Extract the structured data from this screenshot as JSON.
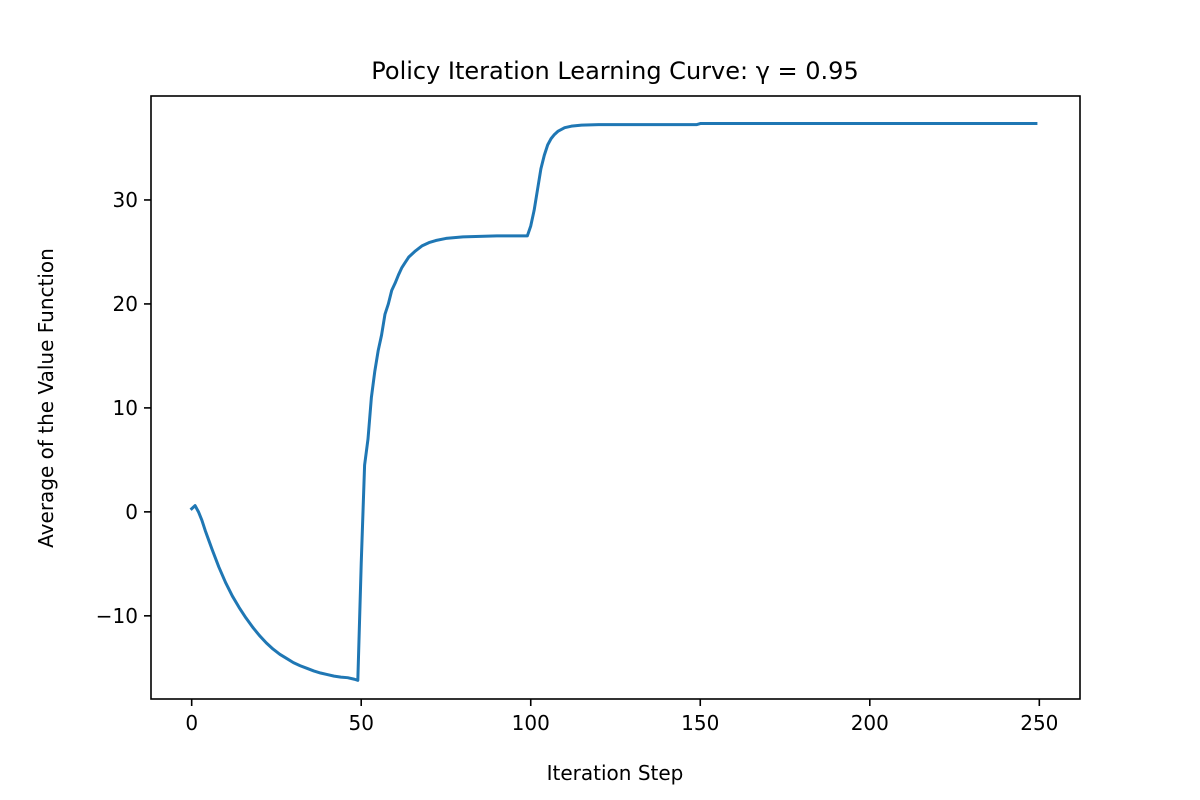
{
  "chart_data": {
    "type": "line",
    "title": "Policy Iteration Learning Curve: γ = 0.95",
    "xlabel": "Iteration Step",
    "ylabel": "Average of the Value Function",
    "xlim": [
      -12,
      262
    ],
    "ylim": [
      -18,
      40
    ],
    "xticks": [
      0,
      50,
      100,
      150,
      200,
      250
    ],
    "yticks": [
      -10,
      0,
      10,
      20,
      30
    ],
    "ytick_labels": [
      "−10",
      "0",
      "10",
      "20",
      "30"
    ],
    "grid": false,
    "legend": "none",
    "series": [
      {
        "color": "#1f77b4",
        "x": [
          0,
          1,
          2,
          3,
          4,
          5,
          6,
          8,
          10,
          12,
          14,
          16,
          18,
          20,
          22,
          24,
          26,
          28,
          30,
          32,
          34,
          36,
          38,
          40,
          42,
          44,
          46,
          48,
          49,
          50,
          51,
          52,
          53,
          54,
          55,
          56,
          57,
          58,
          59,
          60,
          61,
          62,
          63,
          64,
          66,
          68,
          70,
          72,
          75,
          80,
          85,
          90,
          95,
          99,
          100,
          101,
          102,
          103,
          104,
          105,
          106,
          107,
          108,
          110,
          112,
          115,
          120,
          125,
          130,
          140,
          149,
          150,
          175,
          200,
          225,
          249
        ],
        "y": [
          0.3,
          0.6,
          0.0,
          -0.8,
          -1.8,
          -2.7,
          -3.6,
          -5.3,
          -6.8,
          -8.1,
          -9.2,
          -10.2,
          -11.1,
          -11.9,
          -12.6,
          -13.2,
          -13.7,
          -14.1,
          -14.5,
          -14.8,
          -15.05,
          -15.3,
          -15.5,
          -15.65,
          -15.8,
          -15.9,
          -15.95,
          -16.1,
          -16.2,
          -5.0,
          4.5,
          7.0,
          11.0,
          13.5,
          15.5,
          17.0,
          19.0,
          20.0,
          21.3,
          22.0,
          22.8,
          23.5,
          24.0,
          24.5,
          25.1,
          25.6,
          25.9,
          26.1,
          26.3,
          26.45,
          26.5,
          26.55,
          26.55,
          26.55,
          27.5,
          29.0,
          31.0,
          33.0,
          34.3,
          35.3,
          35.9,
          36.3,
          36.6,
          36.95,
          37.1,
          37.2,
          37.25,
          37.25,
          37.25,
          37.25,
          37.25,
          37.35,
          37.35,
          37.35,
          37.35,
          37.35
        ]
      }
    ]
  }
}
